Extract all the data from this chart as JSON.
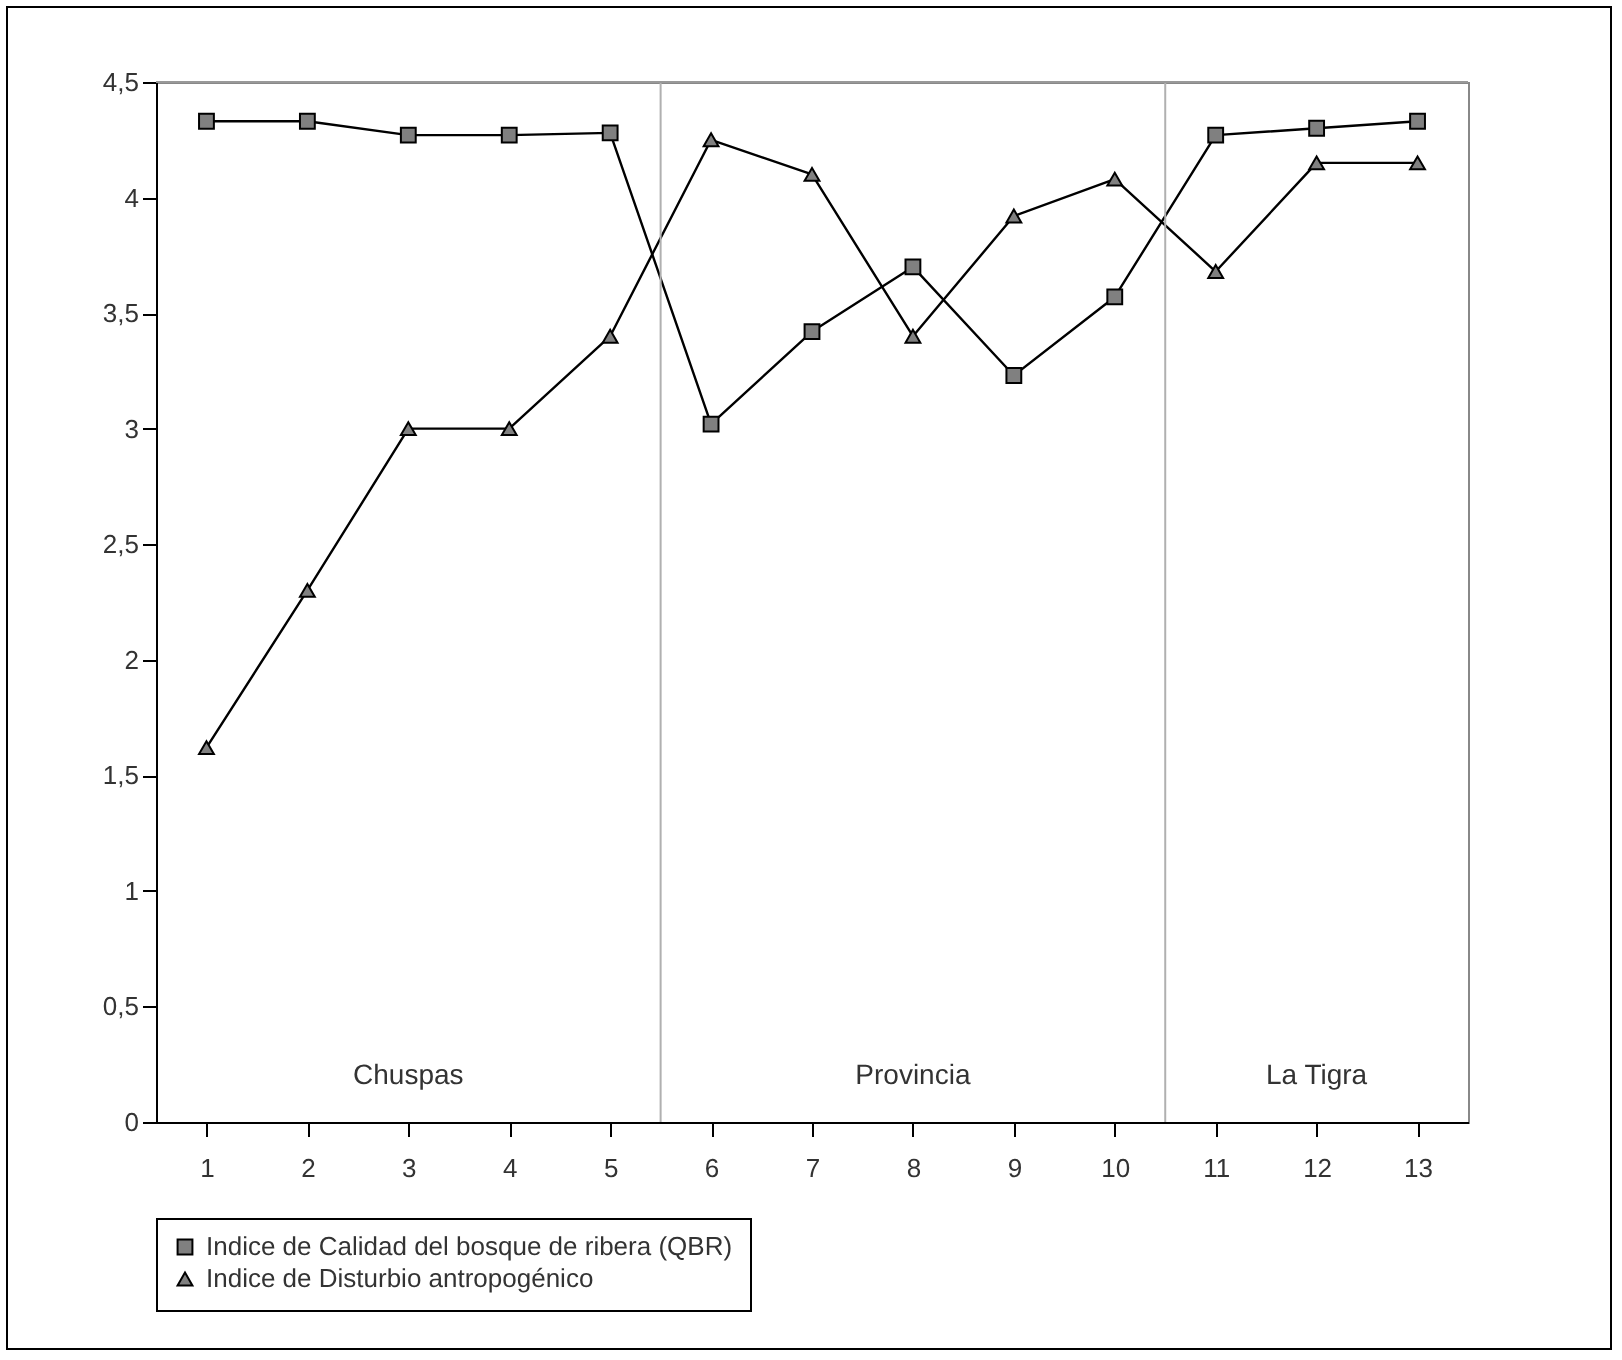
{
  "chart_data": {
    "type": "line",
    "x": [
      1,
      2,
      3,
      4,
      5,
      6,
      7,
      8,
      9,
      10,
      11,
      12,
      13
    ],
    "xlim": [
      0.5,
      13.5
    ],
    "xticks": [
      1,
      2,
      3,
      4,
      5,
      6,
      7,
      8,
      9,
      10,
      11,
      12,
      13
    ],
    "ylim": [
      0,
      4.5
    ],
    "yticks": [
      0,
      {
        "value": 0.5,
        "label": "0,5"
      },
      1,
      {
        "value": 1.5,
        "label": "1,5"
      },
      2,
      {
        "value": 2.5,
        "label": "2,5"
      },
      3,
      {
        "value": 3.5,
        "label": "3,5"
      },
      4,
      {
        "value": 4.5,
        "label": "4,5"
      }
    ],
    "series": [
      {
        "name": "Indice de Calidad del bosque de ribera (QBR)",
        "color": "#000000",
        "marker": "square",
        "values": [
          4.33,
          4.33,
          4.27,
          4.27,
          4.28,
          3.02,
          3.42,
          3.7,
          3.23,
          3.57,
          4.27,
          4.3,
          4.33
        ]
      },
      {
        "name": "Indice de Disturbio antropogénico",
        "color": "#000000",
        "marker": "triangle",
        "values": [
          1.62,
          2.3,
          3.0,
          3.0,
          3.4,
          4.25,
          4.1,
          3.4,
          3.92,
          4.08,
          3.68,
          4.15,
          4.15
        ]
      }
    ],
    "ref_lines": [
      {
        "axis": "x",
        "value": 5.5,
        "color": "#b0b0b0"
      },
      {
        "axis": "x",
        "value": 10.5,
        "color": "#b0b0b0"
      }
    ],
    "annotations": [
      "Chuspas",
      "Provincia",
      "La Tigra"
    ],
    "grid": false,
    "legend": "bottom",
    "line_style": "solid"
  }
}
